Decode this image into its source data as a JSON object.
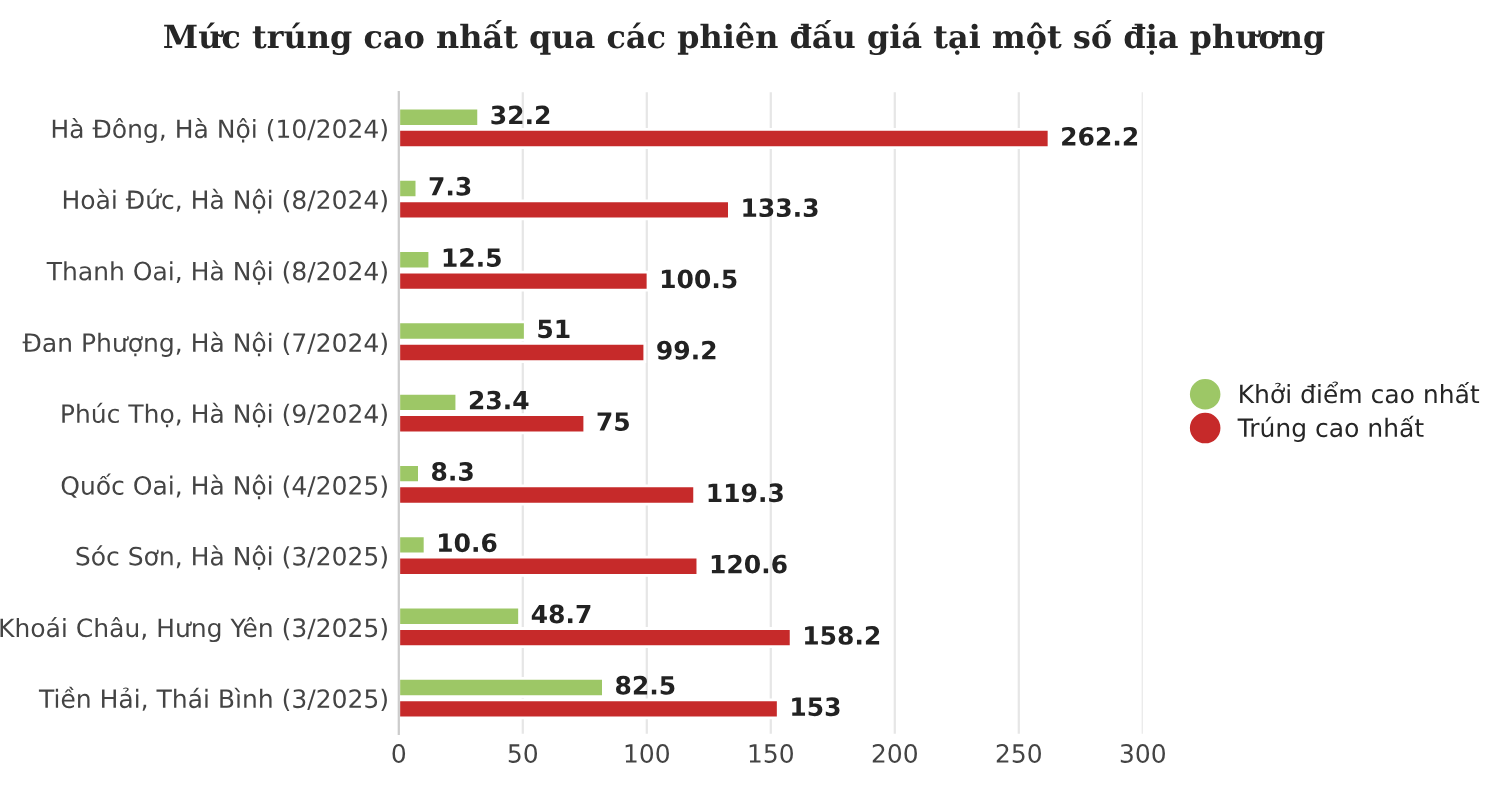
{
  "chart_data": {
    "type": "bar",
    "orientation": "horizontal",
    "title": "Mức trúng cao nhất qua các phiên đấu giá tại một số địa phương",
    "categories": [
      "Hà Đông, Hà Nội (10/2024)",
      "Hoài Đức, Hà Nội (8/2024)",
      "Thanh Oai, Hà Nội (8/2024)",
      "Đan Phượng, Hà Nội (7/2024)",
      "Phúc Thọ, Hà Nội (9/2024)",
      "Quốc Oai, Hà Nội (4/2025)",
      "Sóc Sơn, Hà Nội (3/2025)",
      "Khoái Châu, Hưng Yên (3/2025)",
      "Tiền Hải, Thái Bình (3/2025)"
    ],
    "series": [
      {
        "name": "Khởi điểm cao nhất",
        "color": "#9dc766",
        "values": [
          32.2,
          7.3,
          12.5,
          51,
          23.4,
          8.3,
          10.6,
          48.7,
          82.5
        ]
      },
      {
        "name": "Trúng cao nhất",
        "color": "#c62a2a",
        "values": [
          262.2,
          133.3,
          100.5,
          99.2,
          75,
          119.3,
          120.6,
          158.2,
          153
        ]
      }
    ],
    "xlim": [
      0,
      300
    ],
    "xticks": [
      0,
      50,
      100,
      150,
      200,
      250,
      300
    ],
    "grid": "x",
    "legend": "right",
    "data_labels": true
  }
}
